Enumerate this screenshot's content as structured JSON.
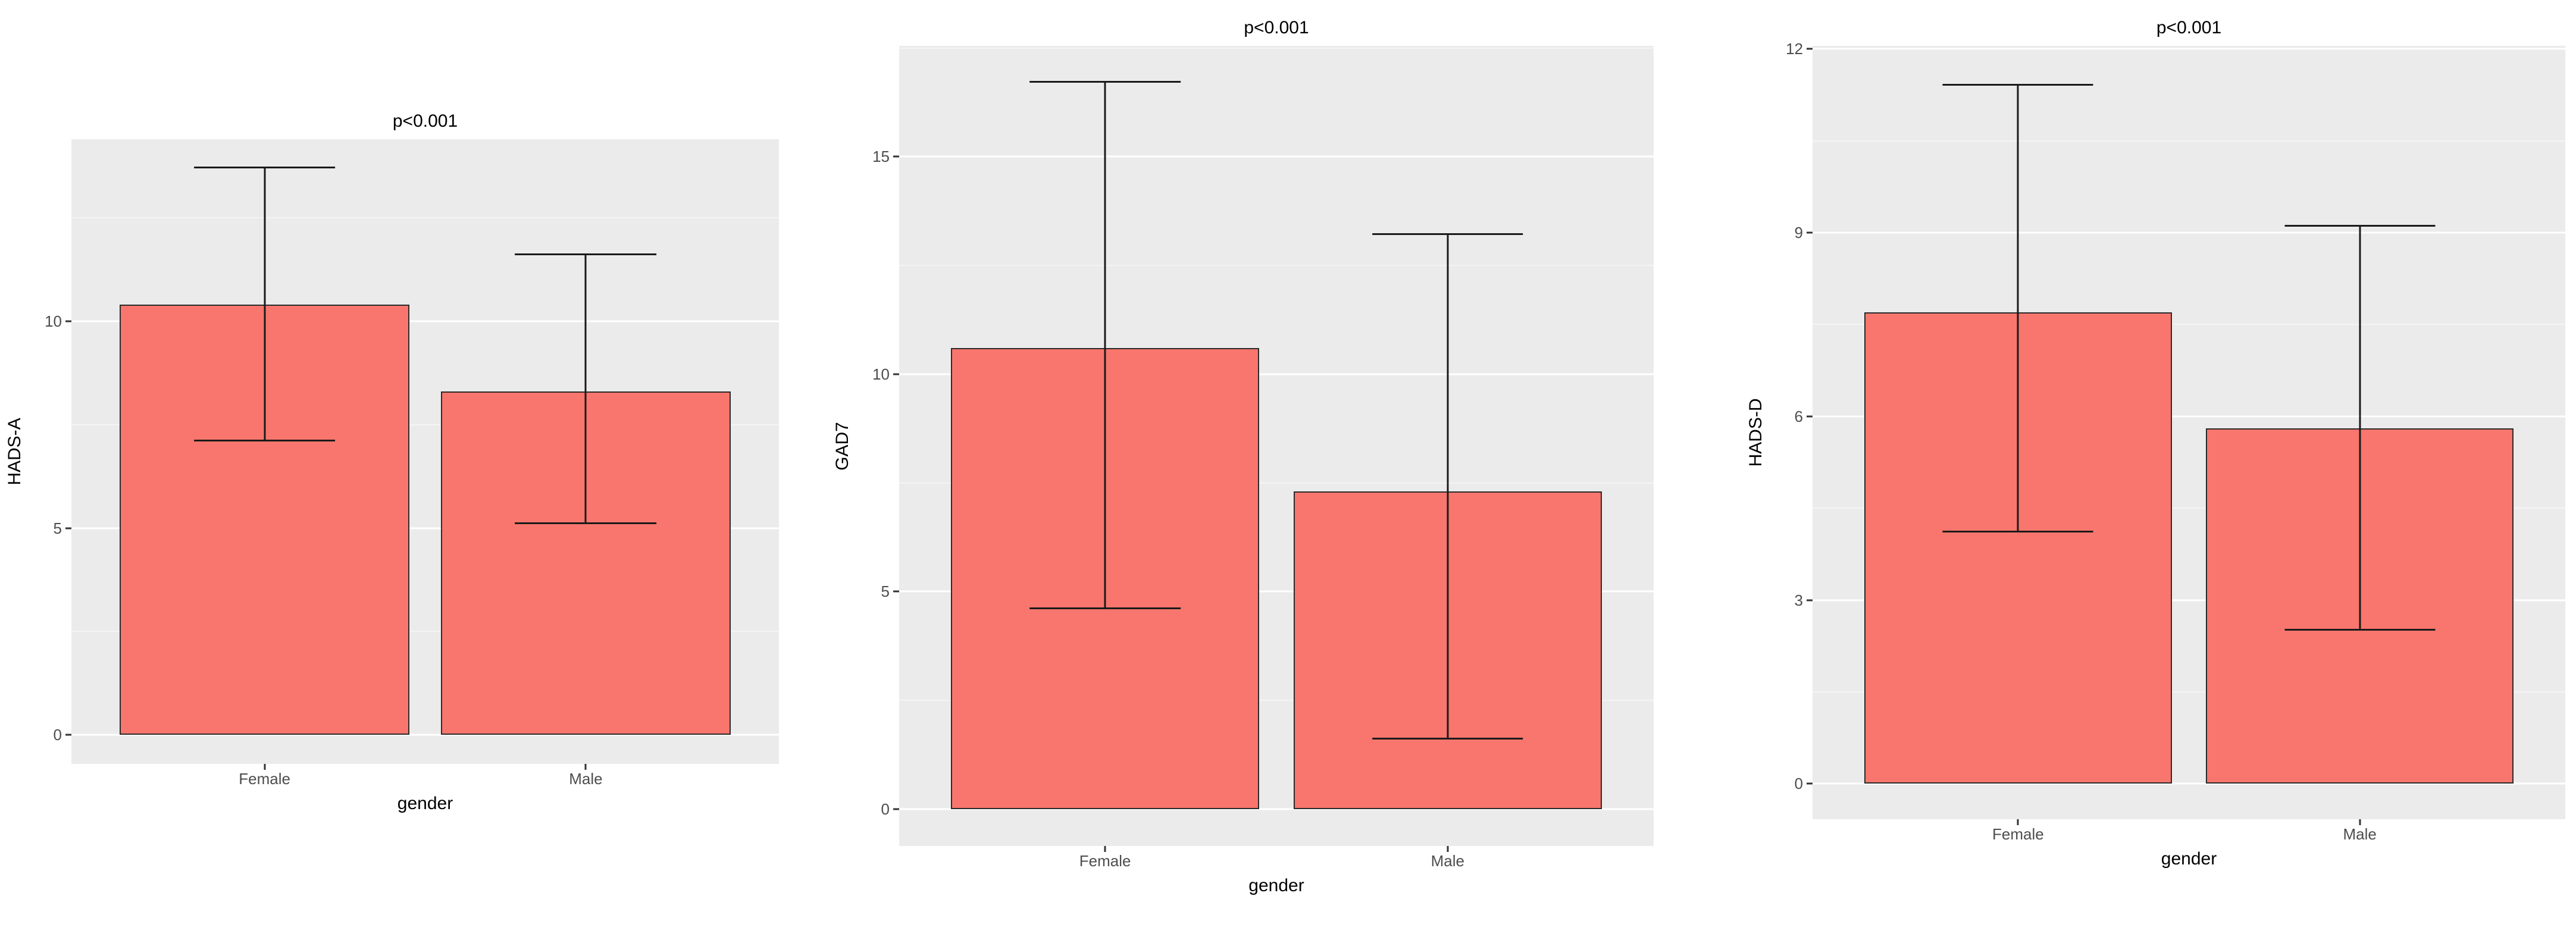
{
  "page": {
    "background": "#ffffff",
    "description": "Three bar charts comparing questionnaire scores by gender"
  },
  "colors": {
    "bar_fill": "#F8766D",
    "bar_stroke": "#2b2b2b",
    "panel_background": "#EBEBEB",
    "grid_major": "#ffffff",
    "tick_label": "#4d4d4d"
  },
  "chart_data": [
    {
      "type": "bar",
      "title": "p<0.001",
      "xlabel": "gender",
      "ylabel": "HADS-A",
      "categories": [
        "Female",
        "Male"
      ],
      "values": [
        10.4,
        8.3
      ],
      "error_bars": [
        {
          "low": 7.1,
          "high": 13.7
        },
        {
          "low": 5.1,
          "high": 11.6
        }
      ],
      "yticks": [
        0,
        5,
        10
      ],
      "ylim": [
        -0.7,
        14.4
      ],
      "grid": true,
      "legend": "none",
      "bar_color": "#F8766D",
      "panel_background": "#EBEBEB",
      "bar_centers_pct": [
        27.3,
        72.7
      ],
      "bar_width_pct": 40.9,
      "error_cap_width_pct": 20
    },
    {
      "type": "bar",
      "title": "p<0.001",
      "xlabel": "gender",
      "ylabel": "GAD7",
      "categories": [
        "Female",
        "Male"
      ],
      "values": [
        10.6,
        7.3
      ],
      "error_bars": [
        {
          "low": 4.6,
          "high": 16.7
        },
        {
          "low": 1.6,
          "high": 13.2
        }
      ],
      "yticks": [
        0,
        5,
        10,
        15
      ],
      "ylim": [
        -0.85,
        17.55
      ],
      "grid": true,
      "legend": "none",
      "bar_color": "#F8766D",
      "panel_background": "#EBEBEB",
      "bar_centers_pct": [
        27.3,
        72.7
      ],
      "bar_width_pct": 40.9,
      "error_cap_width_pct": 20
    },
    {
      "type": "bar",
      "title": "p<0.001",
      "xlabel": "gender",
      "ylabel": "HADS-D",
      "categories": [
        "Female",
        "Male"
      ],
      "values": [
        7.7,
        5.8
      ],
      "error_bars": [
        {
          "low": 4.1,
          "high": 11.4
        },
        {
          "low": 2.5,
          "high": 9.1
        }
      ],
      "yticks": [
        0,
        3,
        6,
        9,
        12
      ],
      "ylim": [
        -0.58,
        12.05
      ],
      "grid": true,
      "legend": "none",
      "bar_color": "#F8766D",
      "panel_background": "#EBEBEB",
      "bar_centers_pct": [
        27.3,
        72.7
      ],
      "bar_width_pct": 40.9,
      "error_cap_width_pct": 20
    }
  ]
}
